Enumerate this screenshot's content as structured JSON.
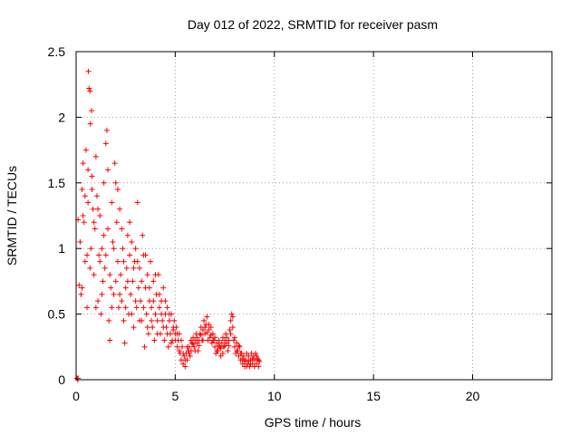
{
  "chart_data": {
    "type": "scatter",
    "title": "Day 012 of 2022, SRMTID for receiver pasm",
    "xlabel": "GPS time / hours",
    "ylabel": "SRMTID / TECUs",
    "xlim": [
      0,
      24
    ],
    "ylim": [
      0,
      2.5
    ],
    "xticks": [
      0,
      5,
      10,
      15,
      20
    ],
    "xtick_labels": [
      "0",
      "5",
      "10",
      "15",
      "20"
    ],
    "yticks": [
      0,
      0.5,
      1,
      1.5,
      2,
      2.5
    ],
    "ytick_labels": [
      "0",
      "0.5",
      "1",
      "1.5",
      "2",
      "2.5"
    ],
    "grid": true,
    "marker": "+",
    "marker_color": "#ff0000",
    "series": [
      {
        "name": "SRMTID",
        "points": [
          [
            0.05,
            0.01
          ],
          [
            0.08,
            0.0
          ],
          [
            0.1,
            0.01
          ],
          [
            0.1,
            1.22
          ],
          [
            0.15,
            0.72
          ],
          [
            0.2,
            1.05
          ],
          [
            0.25,
            0.65
          ],
          [
            0.3,
            1.45
          ],
          [
            0.35,
            1.65
          ],
          [
            0.4,
            1.2
          ],
          [
            0.45,
            0.9
          ],
          [
            0.5,
            1.75
          ],
          [
            0.55,
            0.55
          ],
          [
            0.6,
            1.35
          ],
          [
            0.62,
            2.35
          ],
          [
            0.65,
            2.22
          ],
          [
            0.7,
            2.2
          ],
          [
            0.72,
            1.95
          ],
          [
            0.75,
            1.0
          ],
          [
            0.78,
            2.05
          ],
          [
            0.8,
            1.55
          ],
          [
            0.85,
            1.3
          ],
          [
            0.9,
            0.8
          ],
          [
            0.95,
            1.15
          ],
          [
            1.0,
            1.7
          ],
          [
            1.05,
            1.4
          ],
          [
            1.1,
            0.6
          ],
          [
            1.15,
            0.95
          ],
          [
            1.2,
            1.25
          ],
          [
            1.25,
            0.5
          ],
          [
            1.3,
            1.0
          ],
          [
            1.35,
            0.75
          ],
          [
            1.4,
            1.1
          ],
          [
            1.45,
            0.85
          ],
          [
            1.5,
            1.8
          ],
          [
            1.55,
            1.9
          ],
          [
            1.6,
            1.6
          ],
          [
            1.65,
            0.45
          ],
          [
            1.7,
            0.3
          ],
          [
            1.75,
            0.7
          ],
          [
            1.8,
            1.35
          ],
          [
            1.85,
            1.05
          ],
          [
            1.9,
            0.65
          ],
          [
            1.95,
            1.65
          ],
          [
            2.0,
            1.5
          ],
          [
            2.05,
            1.2
          ],
          [
            2.1,
            0.9
          ],
          [
            2.15,
            0.55
          ],
          [
            2.2,
            1.3
          ],
          [
            2.25,
            0.8
          ],
          [
            2.3,
            0.6
          ],
          [
            2.35,
            1.0
          ],
          [
            2.4,
            0.45
          ],
          [
            2.45,
            0.28
          ],
          [
            2.5,
            0.7
          ],
          [
            2.55,
            0.85
          ],
          [
            2.6,
            1.1
          ],
          [
            2.65,
            0.5
          ],
          [
            2.7,
            0.95
          ],
          [
            2.75,
            0.65
          ],
          [
            2.8,
            1.05
          ],
          [
            2.85,
            0.75
          ],
          [
            2.9,
            0.4
          ],
          [
            2.95,
            0.9
          ],
          [
            3.0,
            1.0
          ],
          [
            3.05,
            0.55
          ],
          [
            3.1,
            1.35
          ],
          [
            3.15,
            0.7
          ],
          [
            3.2,
            0.85
          ],
          [
            3.25,
            0.6
          ],
          [
            3.3,
            0.45
          ],
          [
            3.35,
            1.1
          ],
          [
            3.4,
            0.95
          ],
          [
            3.45,
            0.25
          ],
          [
            3.5,
            0.7
          ],
          [
            3.55,
            0.5
          ],
          [
            3.6,
            0.8
          ],
          [
            3.65,
            0.35
          ],
          [
            3.7,
            0.6
          ],
          [
            3.75,
            0.9
          ],
          [
            3.8,
            0.55
          ],
          [
            3.85,
            0.4
          ],
          [
            3.9,
            0.75
          ],
          [
            3.95,
            0.3
          ],
          [
            4.0,
            0.5
          ],
          [
            4.05,
            0.65
          ],
          [
            4.1,
            0.45
          ],
          [
            4.15,
            0.8
          ],
          [
            4.2,
            0.55
          ],
          [
            4.25,
            0.35
          ],
          [
            4.3,
            0.6
          ],
          [
            4.35,
            0.45
          ],
          [
            4.4,
            0.7
          ],
          [
            4.45,
            0.3
          ],
          [
            4.5,
            0.5
          ],
          [
            4.55,
            0.4
          ],
          [
            4.6,
            0.55
          ],
          [
            4.65,
            0.25
          ],
          [
            4.7,
            0.45
          ],
          [
            4.75,
            0.35
          ],
          [
            4.8,
            0.5
          ],
          [
            4.85,
            0.3
          ],
          [
            4.9,
            0.4
          ],
          [
            4.95,
            0.45
          ],
          [
            5.0,
            0.35
          ],
          [
            5.05,
            0.4
          ],
          [
            5.1,
            0.25
          ],
          [
            5.15,
            0.3
          ],
          [
            5.2,
            0.35
          ],
          [
            5.25,
            0.2
          ],
          [
            5.3,
            0.15
          ],
          [
            5.35,
            0.25
          ],
          [
            5.4,
            0.12
          ],
          [
            5.45,
            0.18
          ],
          [
            5.5,
            0.1
          ],
          [
            5.55,
            0.2
          ],
          [
            5.6,
            0.15
          ],
          [
            5.65,
            0.22
          ],
          [
            5.7,
            0.25
          ],
          [
            5.75,
            0.18
          ],
          [
            5.8,
            0.3
          ],
          [
            5.85,
            0.28
          ],
          [
            5.9,
            0.32
          ],
          [
            5.95,
            0.25
          ],
          [
            6.0,
            0.3
          ],
          [
            6.05,
            0.35
          ],
          [
            6.1,
            0.28
          ],
          [
            6.15,
            0.22
          ],
          [
            6.2,
            0.3
          ],
          [
            6.25,
            0.35
          ],
          [
            6.3,
            0.4
          ],
          [
            6.35,
            0.3
          ],
          [
            6.4,
            0.38
          ],
          [
            6.45,
            0.45
          ],
          [
            6.5,
            0.35
          ],
          [
            6.55,
            0.42
          ],
          [
            6.6,
            0.48
          ],
          [
            6.65,
            0.3
          ],
          [
            6.7,
            0.38
          ],
          [
            6.75,
            0.32
          ],
          [
            6.8,
            0.4
          ],
          [
            6.85,
            0.28
          ],
          [
            6.9,
            0.35
          ],
          [
            6.95,
            0.3
          ],
          [
            7.0,
            0.25
          ],
          [
            7.05,
            0.2
          ],
          [
            7.1,
            0.28
          ],
          [
            7.15,
            0.22
          ],
          [
            7.2,
            0.3
          ],
          [
            7.25,
            0.25
          ],
          [
            7.3,
            0.18
          ],
          [
            7.35,
            0.28
          ],
          [
            7.4,
            0.32
          ],
          [
            7.45,
            0.25
          ],
          [
            7.5,
            0.3
          ],
          [
            7.55,
            0.35
          ],
          [
            7.6,
            0.28
          ],
          [
            7.65,
            0.22
          ],
          [
            7.7,
            0.3
          ],
          [
            7.75,
            0.38
          ],
          [
            7.8,
            0.45
          ],
          [
            7.85,
            0.5
          ],
          [
            7.9,
            0.4
          ],
          [
            7.95,
            0.3
          ],
          [
            8.0,
            0.25
          ],
          [
            8.05,
            0.2
          ],
          [
            8.1,
            0.28
          ],
          [
            8.15,
            0.22
          ],
          [
            8.2,
            0.18
          ],
          [
            8.25,
            0.25
          ],
          [
            8.3,
            0.15
          ],
          [
            8.35,
            0.2
          ],
          [
            8.4,
            0.12
          ],
          [
            8.45,
            0.18
          ],
          [
            8.5,
            0.1
          ],
          [
            8.55,
            0.15
          ],
          [
            8.6,
            0.2
          ],
          [
            8.65,
            0.12
          ],
          [
            8.7,
            0.18
          ],
          [
            8.75,
            0.1
          ],
          [
            8.8,
            0.15
          ],
          [
            8.85,
            0.2
          ],
          [
            8.9,
            0.12
          ],
          [
            8.95,
            0.18
          ],
          [
            9.0,
            0.15
          ],
          [
            9.05,
            0.2
          ],
          [
            9.1,
            0.12
          ],
          [
            9.15,
            0.16
          ],
          [
            9.2,
            0.1
          ],
          [
            9.25,
            0.14
          ],
          [
            0.3,
            0.7
          ],
          [
            0.35,
            1.25
          ],
          [
            0.45,
            1.4
          ],
          [
            0.55,
            0.95
          ],
          [
            0.6,
            1.6
          ],
          [
            0.7,
            0.85
          ],
          [
            0.8,
            1.45
          ],
          [
            0.9,
            1.2
          ],
          [
            1.0,
            0.55
          ],
          [
            1.1,
            1.3
          ],
          [
            1.2,
            0.9
          ],
          [
            1.3,
            0.65
          ],
          [
            1.4,
            1.5
          ],
          [
            1.5,
            0.95
          ],
          [
            1.6,
            1.15
          ],
          [
            1.7,
            0.8
          ],
          [
            1.8,
            0.55
          ],
          [
            1.9,
            1.0
          ],
          [
            2.0,
            0.75
          ],
          [
            2.1,
            1.45
          ],
          [
            2.2,
            0.65
          ],
          [
            2.3,
            1.15
          ],
          [
            2.4,
            0.9
          ],
          [
            2.5,
            0.55
          ],
          [
            2.6,
            0.75
          ],
          [
            2.7,
            1.2
          ],
          [
            2.8,
            0.5
          ],
          [
            2.9,
            0.85
          ],
          [
            3.0,
            0.6
          ],
          [
            3.1,
            0.9
          ],
          [
            3.2,
            0.45
          ],
          [
            3.3,
            0.75
          ],
          [
            3.4,
            0.55
          ],
          [
            3.5,
            0.95
          ],
          [
            3.6,
            0.4
          ],
          [
            3.7,
            0.7
          ],
          [
            3.8,
            0.45
          ],
          [
            3.9,
            0.6
          ],
          [
            4.0,
            0.8
          ],
          [
            4.1,
            0.35
          ],
          [
            4.2,
            0.65
          ],
          [
            4.3,
            0.5
          ],
          [
            4.4,
            0.4
          ],
          [
            4.5,
            0.6
          ],
          [
            4.6,
            0.35
          ],
          [
            4.7,
            0.5
          ],
          [
            4.8,
            0.28
          ],
          [
            4.9,
            0.38
          ],
          [
            5.0,
            0.3
          ],
          [
            5.1,
            0.35
          ],
          [
            5.2,
            0.22
          ],
          [
            5.3,
            0.3
          ],
          [
            5.4,
            0.2
          ],
          [
            5.5,
            0.15
          ],
          [
            5.6,
            0.25
          ],
          [
            5.7,
            0.2
          ],
          [
            5.8,
            0.22
          ],
          [
            5.9,
            0.27
          ],
          [
            6.0,
            0.22
          ],
          [
            6.1,
            0.32
          ],
          [
            6.2,
            0.26
          ],
          [
            6.3,
            0.34
          ],
          [
            6.4,
            0.3
          ],
          [
            6.5,
            0.4
          ],
          [
            6.6,
            0.36
          ],
          [
            6.7,
            0.42
          ],
          [
            6.8,
            0.34
          ],
          [
            6.9,
            0.3
          ],
          [
            7.0,
            0.32
          ],
          [
            7.1,
            0.22
          ],
          [
            7.2,
            0.26
          ],
          [
            7.3,
            0.24
          ],
          [
            7.4,
            0.2
          ],
          [
            7.5,
            0.26
          ],
          [
            7.6,
            0.32
          ],
          [
            7.7,
            0.26
          ],
          [
            7.8,
            0.35
          ],
          [
            7.9,
            0.48
          ],
          [
            8.0,
            0.32
          ],
          [
            8.1,
            0.22
          ],
          [
            8.2,
            0.26
          ],
          [
            8.3,
            0.2
          ],
          [
            8.4,
            0.16
          ],
          [
            8.5,
            0.14
          ],
          [
            8.6,
            0.1
          ],
          [
            8.7,
            0.14
          ],
          [
            8.8,
            0.12
          ],
          [
            8.9,
            0.16
          ],
          [
            9.0,
            0.1
          ],
          [
            9.1,
            0.18
          ],
          [
            9.2,
            0.15
          ]
        ]
      }
    ]
  }
}
